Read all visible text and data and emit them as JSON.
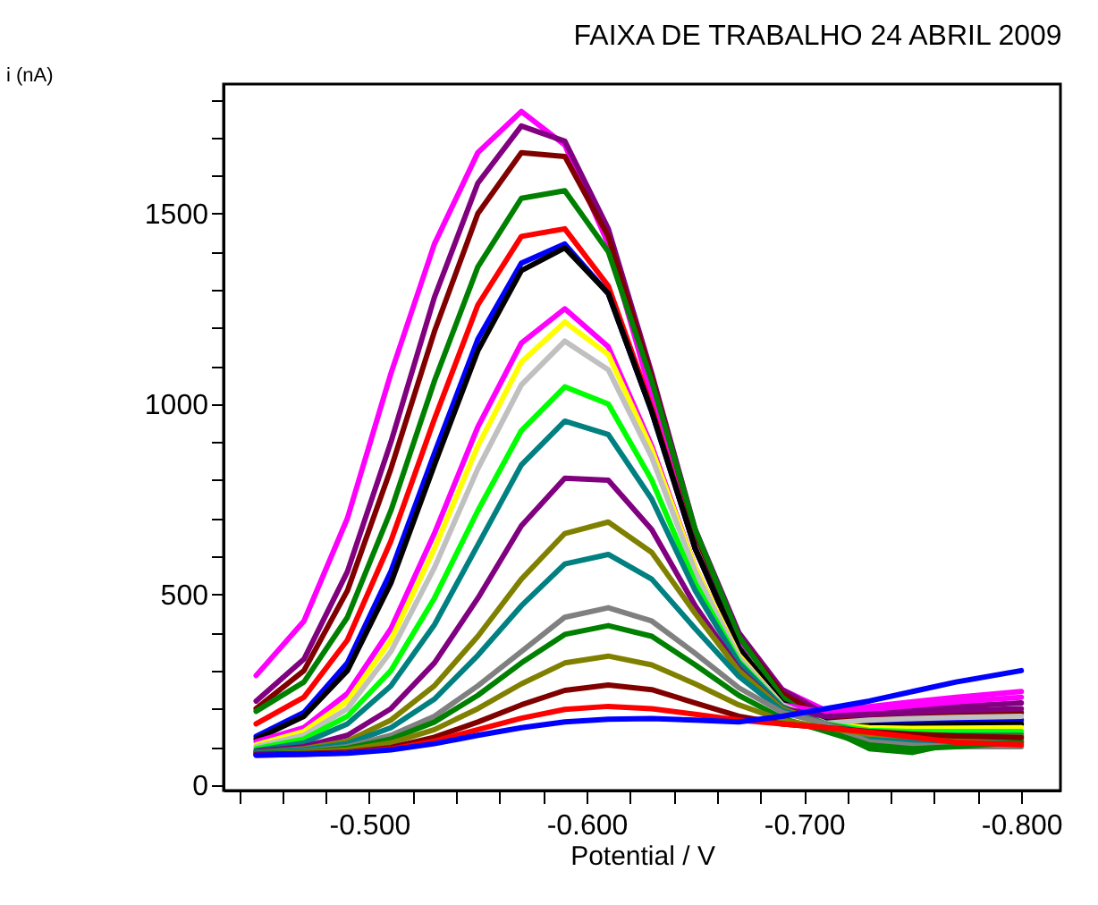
{
  "chart_data": {
    "type": "line",
    "title": "FAIXA DE TRABALHO 24 ABRIL 2009",
    "xlabel": "Potential / V",
    "ylabel": "i (nA)",
    "x": [
      -0.448,
      -0.47,
      -0.49,
      -0.51,
      -0.53,
      -0.55,
      -0.57,
      -0.59,
      -0.61,
      -0.63,
      -0.65,
      -0.67,
      -0.69,
      -0.71,
      -0.73,
      -0.75,
      -0.77,
      -0.8
    ],
    "xlim": [
      -0.433,
      -0.818
    ],
    "xticks": [
      {
        "value": -0.44,
        "label": null
      },
      {
        "value": -0.46,
        "label": null
      },
      {
        "value": -0.48,
        "label": null
      },
      {
        "value": -0.5,
        "label": "-0.500"
      },
      {
        "value": -0.52,
        "label": null
      },
      {
        "value": -0.54,
        "label": null
      },
      {
        "value": -0.56,
        "label": null
      },
      {
        "value": -0.58,
        "label": null
      },
      {
        "value": -0.6,
        "label": "-0.600"
      },
      {
        "value": -0.62,
        "label": null
      },
      {
        "value": -0.64,
        "label": null
      },
      {
        "value": -0.66,
        "label": null
      },
      {
        "value": -0.68,
        "label": null
      },
      {
        "value": -0.7,
        "label": "-0.700"
      },
      {
        "value": -0.72,
        "label": null
      },
      {
        "value": -0.74,
        "label": null
      },
      {
        "value": -0.76,
        "label": null
      },
      {
        "value": -0.78,
        "label": null
      },
      {
        "value": -0.8,
        "label": "-0.800"
      }
    ],
    "ylim": [
      -15,
      1840
    ],
    "yticks": [
      0,
      {
        "value": 100,
        "label": null
      },
      {
        "value": 200,
        "label": null
      },
      {
        "value": 300,
        "label": null
      },
      {
        "value": 400,
        "label": null
      },
      500,
      {
        "value": 600,
        "label": null
      },
      {
        "value": 700,
        "label": null
      },
      {
        "value": 800,
        "label": null
      },
      {
        "value": 900,
        "label": null
      },
      1000,
      {
        "value": 1100,
        "label": null
      },
      {
        "value": 1200,
        "label": null
      },
      {
        "value": 1300,
        "label": null
      },
      {
        "value": 1400,
        "label": null
      },
      1500,
      {
        "value": 1600,
        "label": null
      },
      {
        "value": 1700,
        "label": null
      },
      {
        "value": 1800,
        "label": null
      }
    ],
    "grid": false,
    "legend": false,
    "line_style": "solid",
    "series": [
      {
        "color": "#ff00ff",
        "values": [
          287,
          430,
          700,
          1080,
          1420,
          1660,
          1768,
          1680,
          1420,
          1020,
          620,
          380,
          250,
          195,
          205,
          218,
          230,
          245
        ]
      },
      {
        "color": "#800080",
        "values": [
          220,
          330,
          560,
          900,
          1280,
          1580,
          1730,
          1690,
          1460,
          1080,
          670,
          400,
          250,
          185,
          190,
          198,
          206,
          215
        ]
      },
      {
        "color": "#800000",
        "values": [
          200,
          300,
          510,
          830,
          1190,
          1500,
          1660,
          1650,
          1440,
          1070,
          660,
          390,
          240,
          175,
          178,
          183,
          187,
          190
        ]
      },
      {
        "color": "#008000",
        "values": [
          193,
          270,
          440,
          720,
          1060,
          1360,
          1540,
          1560,
          1400,
          1060,
          670,
          390,
          230,
          150,
          95,
          85,
          110,
          135
        ]
      },
      {
        "color": "#ff0000",
        "values": [
          160,
          230,
          380,
          640,
          960,
          1260,
          1440,
          1460,
          1310,
          990,
          620,
          360,
          215,
          160,
          140,
          128,
          120,
          115
        ]
      },
      {
        "color": "#0000ff",
        "values": [
          127,
          190,
          320,
          560,
          870,
          1170,
          1370,
          1420,
          1290,
          980,
          620,
          360,
          215,
          165,
          162,
          165,
          168,
          170
        ]
      },
      {
        "color": "#000000",
        "values": [
          120,
          180,
          300,
          530,
          840,
          1140,
          1350,
          1410,
          1290,
          980,
          620,
          360,
          215,
          165,
          155,
          156,
          158,
          160
        ]
      },
      {
        "color": "#ff00ff",
        "values": [
          113,
          150,
          240,
          410,
          660,
          940,
          1160,
          1250,
          1150,
          890,
          570,
          340,
          210,
          190,
          198,
          208,
          218,
          230
        ]
      },
      {
        "color": "#ffff00",
        "values": [
          105,
          140,
          220,
          380,
          620,
          890,
          1110,
          1215,
          1130,
          880,
          570,
          340,
          210,
          160,
          150,
          148,
          149,
          150
        ]
      },
      {
        "color": "#c0c0c0",
        "values": [
          100,
          130,
          200,
          350,
          570,
          830,
          1050,
          1165,
          1090,
          860,
          560,
          335,
          210,
          162,
          170,
          174,
          177,
          180
        ]
      },
      {
        "color": "#00ff00",
        "values": [
          95,
          120,
          180,
          300,
          490,
          720,
          930,
          1045,
          1000,
          800,
          530,
          325,
          205,
          160,
          143,
          140,
          140,
          140
        ]
      },
      {
        "color": "#008080",
        "values": [
          90,
          110,
          160,
          260,
          420,
          630,
          840,
          955,
          920,
          750,
          510,
          320,
          205,
          160,
          135,
          130,
          130,
          130
        ]
      },
      {
        "color": "#800080",
        "values": [
          88,
          100,
          130,
          200,
          320,
          490,
          680,
          805,
          800,
          670,
          470,
          305,
          200,
          180,
          185,
          190,
          195,
          200
        ]
      },
      {
        "color": "#808000",
        "values": [
          85,
          95,
          115,
          170,
          260,
          390,
          540,
          660,
          690,
          610,
          450,
          300,
          200,
          160,
          128,
          122,
          120,
          120
        ]
      },
      {
        "color": "#008080",
        "values": [
          85,
          92,
          108,
          150,
          225,
          340,
          470,
          580,
          605,
          540,
          410,
          285,
          195,
          160,
          120,
          112,
          110,
          110
        ]
      },
      {
        "color": "#808080",
        "values": [
          82,
          88,
          100,
          130,
          180,
          260,
          350,
          440,
          465,
          430,
          345,
          255,
          190,
          160,
          113,
          104,
          100,
          100
        ]
      },
      {
        "color": "#008000",
        "values": [
          82,
          86,
          96,
          120,
          165,
          235,
          320,
          395,
          418,
          390,
          315,
          235,
          175,
          140,
          105,
          95,
          100,
          112
        ]
      },
      {
        "color": "#808000",
        "values": [
          80,
          84,
          92,
          110,
          145,
          200,
          265,
          320,
          338,
          315,
          265,
          210,
          170,
          150,
          133,
          127,
          125,
          126
        ]
      },
      {
        "color": "#800000",
        "values": [
          80,
          82,
          86,
          98,
          125,
          165,
          210,
          248,
          262,
          250,
          215,
          180,
          160,
          150,
          140,
          133,
          128,
          124
        ]
      },
      {
        "color": "#ff0000",
        "values": [
          78,
          80,
          84,
          94,
          115,
          145,
          175,
          198,
          206,
          200,
          185,
          170,
          160,
          150,
          138,
          125,
          112,
          105
        ]
      },
      {
        "color": "#0000ff",
        "values": [
          78,
          80,
          83,
          92,
          108,
          130,
          150,
          165,
          172,
          174,
          170,
          165,
          180,
          200,
          220,
          245,
          270,
          300
        ]
      }
    ]
  }
}
